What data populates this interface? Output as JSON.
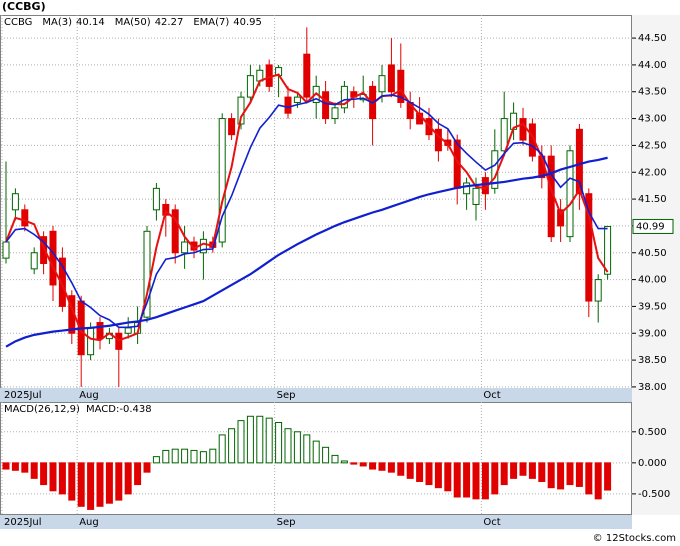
{
  "chart_data": [
    {
      "type": "candlestick",
      "title": "(CCBG)",
      "symbol": "CCBG",
      "categories": [
        "2025Jul",
        null,
        null,
        null,
        null,
        null,
        null,
        null,
        "Aug",
        null,
        null,
        null,
        null,
        null,
        null,
        null,
        null,
        null,
        null,
        null,
        null,
        null,
        null,
        null,
        null,
        null,
        null,
        null,
        null,
        "Sep",
        null,
        null,
        null,
        null,
        null,
        null,
        null,
        null,
        null,
        null,
        null,
        null,
        null,
        null,
        null,
        null,
        null,
        null,
        null,
        null,
        null,
        "Oct",
        null,
        null,
        null,
        null,
        null,
        null,
        null,
        null,
        null,
        null,
        null,
        null,
        null
      ],
      "open": [
        40.4,
        41.3,
        41.3,
        40.2,
        40.8,
        40.9,
        40.4,
        39.7,
        39.6,
        38.6,
        39.2,
        38.9,
        39.0,
        39.0,
        39.0,
        39.3,
        41.3,
        41.4,
        41.3,
        40.5,
        40.7,
        40.5,
        40.7,
        40.7,
        43.0,
        42.9,
        43.4,
        43.7,
        44.0,
        43.8,
        43.4,
        43.3,
        44.2,
        43.3,
        43.5,
        43.0,
        43.2,
        43.5,
        43.35,
        43.6,
        43.5,
        44.0,
        43.9,
        43.3,
        43.1,
        43.0,
        42.8,
        42.6,
        42.6,
        41.6,
        41.4,
        41.9,
        41.7,
        42.4,
        42.8,
        43.0,
        42.9,
        42.3,
        42.3,
        41.3,
        40.8,
        42.8,
        41.6,
        39.6,
        40.1
      ],
      "high": [
        42.2,
        41.7,
        41.4,
        40.6,
        40.9,
        41.0,
        40.6,
        39.8,
        39.7,
        39.2,
        39.3,
        39.1,
        39.1,
        39.3,
        39.5,
        41.0,
        41.8,
        41.5,
        41.4,
        41.0,
        40.8,
        40.9,
        40.8,
        43.1,
        43.1,
        43.5,
        44.0,
        44.0,
        44.1,
        44.0,
        43.6,
        43.5,
        44.7,
        43.8,
        43.7,
        43.3,
        43.7,
        43.6,
        43.8,
        43.7,
        44.0,
        44.5,
        44.4,
        43.5,
        43.4,
        43.2,
        43.0,
        42.8,
        42.7,
        41.9,
        41.9,
        42.0,
        42.8,
        43.5,
        43.3,
        43.2,
        43.0,
        42.5,
        42.5,
        41.5,
        42.5,
        42.9,
        41.7,
        40.1,
        41.0
      ],
      "low": [
        40.3,
        41.1,
        40.9,
        40.1,
        40.1,
        39.6,
        39.4,
        38.8,
        38.0,
        38.5,
        38.7,
        38.8,
        38.0,
        38.9,
        38.8,
        39.2,
        41.1,
        40.8,
        40.3,
        40.2,
        40.4,
        40.0,
        40.5,
        40.6,
        42.6,
        42.8,
        43.3,
        43.6,
        43.5,
        43.4,
        43.0,
        43.2,
        43.3,
        43.0,
        42.9,
        42.9,
        43.1,
        43.2,
        43.3,
        42.5,
        43.3,
        43.4,
        43.2,
        42.8,
        42.9,
        42.6,
        42.2,
        42.4,
        41.4,
        41.3,
        41.1,
        41.3,
        41.6,
        42.3,
        42.6,
        42.5,
        42.2,
        41.7,
        40.7,
        40.7,
        40.7,
        41.3,
        39.3,
        39.2,
        40.0
      ],
      "close": [
        40.7,
        41.6,
        41.0,
        40.5,
        40.3,
        39.9,
        39.5,
        39.0,
        38.6,
        39.1,
        38.9,
        39.0,
        38.7,
        39.1,
        39.2,
        40.9,
        41.7,
        41.2,
        40.5,
        40.7,
        40.55,
        40.75,
        40.6,
        43.0,
        42.7,
        43.4,
        43.8,
        43.9,
        43.6,
        43.95,
        43.1,
        43.4,
        43.4,
        43.6,
        43.0,
        43.2,
        43.6,
        43.4,
        43.45,
        43.0,
        43.8,
        43.5,
        43.3,
        43.0,
        42.9,
        42.7,
        42.4,
        42.5,
        41.7,
        41.8,
        41.7,
        41.6,
        42.4,
        43.0,
        43.1,
        42.6,
        42.3,
        41.9,
        40.8,
        41.0,
        42.4,
        41.6,
        39.6,
        40.0,
        40.99
      ],
      "up_color": "#006400",
      "down_color": "#e00000",
      "series": [
        {
          "name": "MA(3)",
          "last": 40.14,
          "color": "#e81010",
          "width": 2,
          "values": [
            40.7,
            41.15,
            41.1,
            41.03,
            40.6,
            40.23,
            39.9,
            39.47,
            39.03,
            38.9,
            38.87,
            39.0,
            38.87,
            38.93,
            39.0,
            39.73,
            40.6,
            41.27,
            41.13,
            40.8,
            40.58,
            40.67,
            40.63,
            41.45,
            42.1,
            43.03,
            43.3,
            43.7,
            43.77,
            43.82,
            43.55,
            43.48,
            43.3,
            43.47,
            43.33,
            43.27,
            43.27,
            43.4,
            43.48,
            43.28,
            43.42,
            43.43,
            43.53,
            43.27,
            43.07,
            42.87,
            42.67,
            42.53,
            42.2,
            42.0,
            41.73,
            41.7,
            41.9,
            42.33,
            42.83,
            42.9,
            42.67,
            42.27,
            41.67,
            41.23,
            41.4,
            41.67,
            41.2,
            40.4,
            40.14
          ]
        },
        {
          "name": "MA(50)",
          "last": 42.27,
          "color": "#1020d0",
          "width": 2.2,
          "values": [
            38.75,
            38.85,
            38.92,
            38.97,
            39.0,
            39.03,
            39.05,
            39.07,
            39.09,
            39.1,
            39.12,
            39.14,
            39.17,
            39.2,
            39.22,
            39.25,
            39.3,
            39.36,
            39.42,
            39.48,
            39.54,
            39.6,
            39.7,
            39.8,
            39.9,
            40.0,
            40.1,
            40.22,
            40.34,
            40.46,
            40.56,
            40.66,
            40.75,
            40.84,
            40.92,
            41.0,
            41.07,
            41.13,
            41.19,
            41.25,
            41.3,
            41.36,
            41.42,
            41.48,
            41.54,
            41.59,
            41.63,
            41.67,
            41.71,
            41.74,
            41.76,
            41.78,
            41.8,
            41.82,
            41.85,
            41.88,
            41.9,
            41.93,
            41.98,
            42.05,
            42.1,
            42.15,
            42.2,
            42.23,
            42.27
          ]
        },
        {
          "name": "EMA(7)",
          "last": 40.95,
          "color": "#1020d0",
          "width": 1.6,
          "values": [
            40.7,
            40.93,
            40.95,
            40.84,
            40.7,
            40.5,
            40.25,
            39.94,
            39.6,
            39.48,
            39.33,
            39.25,
            39.11,
            39.11,
            39.13,
            39.57,
            40.1,
            40.38,
            40.41,
            40.48,
            40.5,
            40.56,
            40.57,
            41.18,
            41.56,
            42.02,
            42.46,
            42.82,
            43.02,
            43.25,
            43.21,
            43.26,
            43.3,
            43.37,
            43.28,
            43.26,
            43.35,
            43.36,
            43.38,
            43.29,
            43.42,
            43.44,
            43.4,
            43.3,
            43.2,
            43.08,
            42.91,
            42.81,
            42.53,
            42.35,
            42.19,
            42.04,
            42.13,
            42.35,
            42.54,
            42.55,
            42.49,
            42.34,
            41.96,
            41.72,
            41.89,
            41.82,
            41.26,
            40.95,
            40.95
          ]
        }
      ],
      "ylim": [
        37.98,
        44.93
      ],
      "yticks": [
        {
          "value": 38,
          "label": "38.00"
        },
        {
          "value": 38.5,
          "label": "38.50"
        },
        {
          "value": 39,
          "label": "39.00"
        },
        {
          "value": 39.5,
          "label": "39.50"
        },
        {
          "value": 40,
          "label": "40.00"
        },
        {
          "value": 40.5,
          "label": "40.50"
        },
        {
          "value": 41,
          "label": "41.00"
        },
        {
          "value": 41.5,
          "label": "41.50"
        },
        {
          "value": 42,
          "label": "42.00"
        },
        {
          "value": 42.5,
          "label": "42.50"
        },
        {
          "value": 43,
          "label": "43.00"
        },
        {
          "value": 43.5,
          "label": "43.50"
        },
        {
          "value": 44,
          "label": "44.00"
        },
        {
          "value": 44.5,
          "label": "44.50"
        }
      ],
      "grid": true
    },
    {
      "type": "histogram",
      "title": "MACD(26,12,9)",
      "value_label": "MACD:-0.438",
      "values": [
        -0.1,
        -0.12,
        -0.15,
        -0.25,
        -0.35,
        -0.45,
        -0.5,
        -0.6,
        -0.7,
        -0.75,
        -0.7,
        -0.65,
        -0.6,
        -0.5,
        -0.35,
        -0.15,
        0.1,
        0.2,
        0.22,
        0.22,
        0.2,
        0.18,
        0.22,
        0.45,
        0.55,
        0.68,
        0.75,
        0.75,
        0.72,
        0.65,
        0.55,
        0.5,
        0.45,
        0.35,
        0.25,
        0.12,
        0.03,
        -0.02,
        -0.05,
        -0.1,
        -0.12,
        -0.15,
        -0.2,
        -0.25,
        -0.3,
        -0.35,
        -0.4,
        -0.45,
        -0.55,
        -0.55,
        -0.58,
        -0.58,
        -0.5,
        -0.35,
        -0.25,
        -0.2,
        -0.25,
        -0.3,
        -0.4,
        -0.42,
        -0.35,
        -0.38,
        -0.5,
        -0.58,
        -0.438
      ],
      "up_color": "#006400",
      "down_color": "#e00000",
      "ylim": [
        -0.84,
        0.98
      ],
      "yticks": [
        {
          "value": -0.5,
          "label": "-0.500"
        },
        {
          "value": 0,
          "label": "0.000"
        },
        {
          "value": 0.5,
          "label": "0.500"
        }
      ],
      "grid": true
    }
  ],
  "footer": "© 12Stocks.com"
}
